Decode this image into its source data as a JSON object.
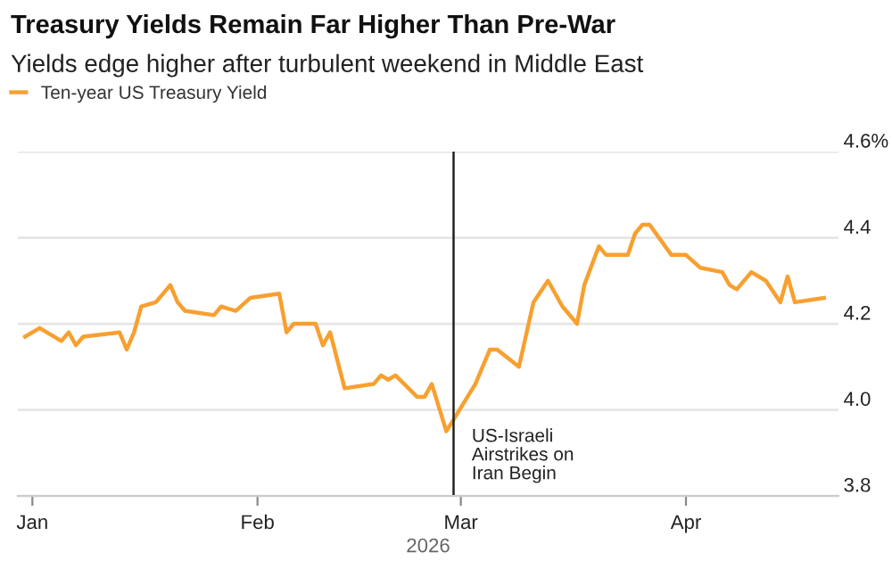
{
  "chart_data": {
    "type": "line",
    "title": "Treasury Yields Remain Far Higher Than Pre-War",
    "subtitle": "Yields edge higher after turbulent weekend in Middle East",
    "xlabel": "2026",
    "x": [
      "2025-12-31",
      "2026-01-02",
      "2026-01-05",
      "2026-01-06",
      "2026-01-07",
      "2026-01-08",
      "2026-01-13",
      "2026-01-14",
      "2026-01-15",
      "2026-01-16",
      "2026-01-18",
      "2026-01-20",
      "2026-01-21",
      "2026-01-22",
      "2026-01-26",
      "2026-01-27",
      "2026-01-29",
      "2026-01-31",
      "2026-02-04",
      "2026-02-05",
      "2026-02-06",
      "2026-02-09",
      "2026-02-10",
      "2026-02-11",
      "2026-02-13",
      "2026-02-17",
      "2026-02-18",
      "2026-02-19",
      "2026-02-20",
      "2026-02-23",
      "2026-02-24",
      "2026-02-25",
      "2026-02-27",
      "2026-03-03",
      "2026-03-05",
      "2026-03-06",
      "2026-03-09",
      "2026-03-11",
      "2026-03-13",
      "2026-03-15",
      "2026-03-17",
      "2026-03-18",
      "2026-03-20",
      "2026-03-21",
      "2026-03-24",
      "2026-03-25",
      "2026-03-26",
      "2026-03-27",
      "2026-03-30",
      "2026-04-01",
      "2026-04-03",
      "2026-04-06",
      "2026-04-07",
      "2026-04-08",
      "2026-04-10",
      "2026-04-12",
      "2026-04-14",
      "2026-04-15",
      "2026-04-16",
      "2026-04-20"
    ],
    "series": [
      {
        "name": "Ten-year US Treasury Yield",
        "color": "#f7a030",
        "values": [
          4.17,
          4.19,
          4.16,
          4.18,
          4.15,
          4.17,
          4.18,
          4.14,
          4.18,
          4.24,
          4.25,
          4.29,
          4.25,
          4.23,
          4.22,
          4.24,
          4.23,
          4.26,
          4.27,
          4.18,
          4.2,
          4.2,
          4.15,
          4.18,
          4.05,
          4.06,
          4.08,
          4.07,
          4.08,
          4.03,
          4.03,
          4.06,
          3.95,
          4.06,
          4.14,
          4.14,
          4.1,
          4.25,
          4.3,
          4.24,
          4.2,
          4.29,
          4.38,
          4.36,
          4.36,
          4.41,
          4.43,
          4.43,
          4.36,
          4.36,
          4.33,
          4.32,
          4.29,
          4.28,
          4.32,
          4.3,
          4.25,
          4.31,
          4.25,
          4.26
        ]
      }
    ],
    "xlim": [
      "2025-12-30",
      "2026-04-22"
    ],
    "xticks": [
      {
        "value": "2026-01-01",
        "label": "Jan"
      },
      {
        "value": "2026-02-01",
        "label": "Feb"
      },
      {
        "value": "2026-03-01",
        "label": "Mar"
      },
      {
        "value": "2026-04-01",
        "label": "Apr"
      }
    ],
    "ylim": [
      3.8,
      4.6
    ],
    "yticks": [
      3.8,
      {
        "value": 4.0,
        "label": "4.0"
      },
      4.2,
      4.4,
      {
        "value": 4.6,
        "label": "4.6%"
      }
    ],
    "ref_lines": [
      {
        "axis": "x",
        "value": "2026-02-28",
        "label": "US-Israeli\nAirstrikes on\nIran Begin",
        "color": "#222222"
      }
    ],
    "grid": "y",
    "legend": "top left",
    "marker": "none",
    "line_style": "solid"
  }
}
